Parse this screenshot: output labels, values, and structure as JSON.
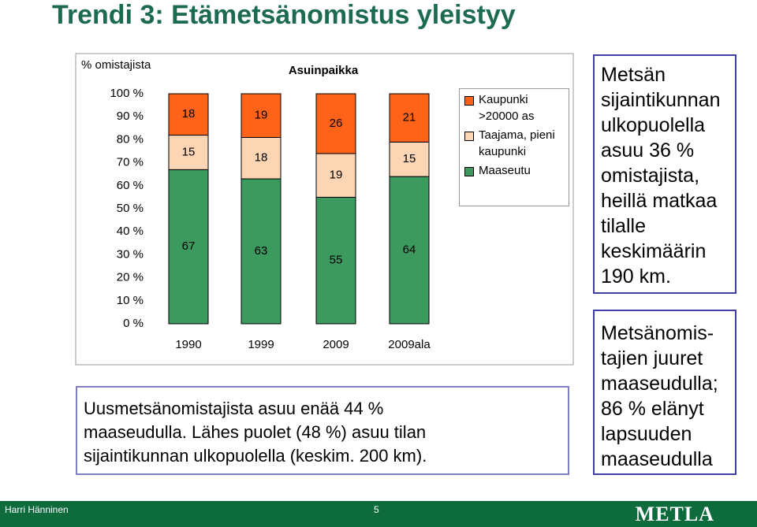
{
  "slide_title": "Trendi 3: Etämetsänomistus yleistyy",
  "chart_data": {
    "type": "stacked_bar",
    "title": "Asuinpaikka",
    "y_label": "% omistajista",
    "categories": [
      "1990",
      "1999",
      "2009",
      "2009ala"
    ],
    "series": [
      {
        "name": "Maaseutu",
        "color": "#3c9a5f",
        "values": [
          67,
          63,
          55,
          64
        ]
      },
      {
        "name": "Taajama, pieni kaupunki",
        "color": "#fcd5b4",
        "values": [
          15,
          18,
          19,
          15
        ]
      },
      {
        "name": "Kaupunki >20000 as",
        "color": "#ff6319",
        "values": [
          18,
          19,
          26,
          21
        ]
      }
    ],
    "ylim": [
      0,
      100
    ],
    "yticks": [
      {
        "value": 0,
        "label": "0 %"
      },
      {
        "value": 10,
        "label": "10 %"
      },
      {
        "value": 20,
        "label": "20 %"
      },
      {
        "value": 30,
        "label": "30 %"
      },
      {
        "value": 40,
        "label": "40 %"
      },
      {
        "value": 50,
        "label": "50 %"
      },
      {
        "value": 60,
        "label": "60 %"
      },
      {
        "value": 70,
        "label": "70 %"
      },
      {
        "value": 80,
        "label": "80 %"
      },
      {
        "value": 90,
        "label": "90 %"
      },
      {
        "value": 100,
        "label": "100 %"
      }
    ]
  },
  "bottom_text": [
    "Uusmetsänomistajista asuu enää 44 %",
    "maaseudulla. Lähes puolet (48 %) asuu tilan",
    "sijaintikunnan ulkopuolella (keskim. 200 km)."
  ],
  "note_1": [
    "Metsän",
    "sijaintikunnan",
    "ulkopuolella",
    "asuu 36 %",
    "omistajista,",
    "heillä matkaa",
    "tilalle",
    "keskimäärin",
    "190 km."
  ],
  "note_2": [
    "Metsänomis-",
    "tajien juuret",
    "maaseudulla;",
    "86 % elänyt",
    "lapsuuden",
    "maaseudulla"
  ],
  "footer": {
    "author": "Harri Hänninen",
    "page": "5",
    "logo": "METLA"
  }
}
